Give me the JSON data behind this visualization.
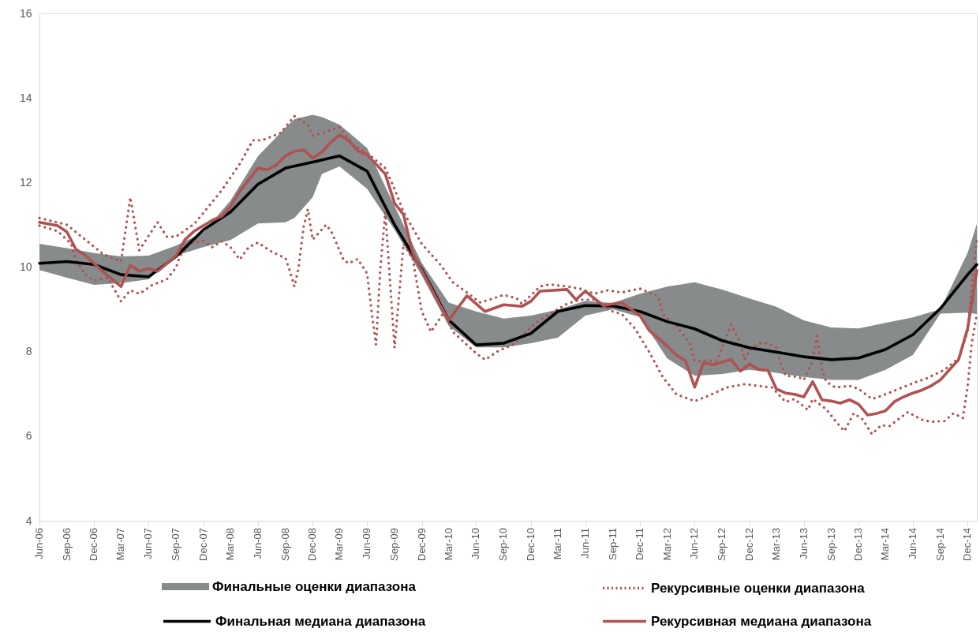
{
  "chart_data": {
    "type": "line",
    "xlim": [
      "2006-06",
      "2015-01"
    ],
    "ylim": [
      4,
      16
    ],
    "yticks": [
      4,
      6,
      8,
      10,
      12,
      14,
      16
    ],
    "grid": false,
    "legend": "bottom",
    "xticks": [
      {
        "value": "2006-06",
        "label": "Jun-06"
      },
      {
        "value": "2006-09",
        "label": "Sep-06"
      },
      {
        "value": "2006-12",
        "label": "Dec-06"
      },
      {
        "value": "2007-03",
        "label": "Mar-07"
      },
      {
        "value": "2007-06",
        "label": "Jun-07"
      },
      {
        "value": "2007-09",
        "label": "Sep-07"
      },
      {
        "value": "2007-12",
        "label": "Dec-07"
      },
      {
        "value": "2008-03",
        "label": "Mar-08"
      },
      {
        "value": "2008-06",
        "label": "Jun-08"
      },
      {
        "value": "2008-09",
        "label": "Sep-08"
      },
      {
        "value": "2008-12",
        "label": "Dec-08"
      },
      {
        "value": "2009-03",
        "label": "Mar-09"
      },
      {
        "value": "2009-06",
        "label": "Jun-09"
      },
      {
        "value": "2009-09",
        "label": "Sep-09"
      },
      {
        "value": "2009-12",
        "label": "Dec-09"
      },
      {
        "value": "2010-03",
        "label": "Mar-10"
      },
      {
        "value": "2010-06",
        "label": "Jun-10"
      },
      {
        "value": "2010-09",
        "label": "Sep-10"
      },
      {
        "value": "2010-12",
        "label": "Dec-10"
      },
      {
        "value": "2011-03",
        "label": "Mar-11"
      },
      {
        "value": "2011-06",
        "label": "Jun-11"
      },
      {
        "value": "2011-09",
        "label": "Sep-11"
      },
      {
        "value": "2011-12",
        "label": "Dec-11"
      },
      {
        "value": "2012-03",
        "label": "Mar-12"
      },
      {
        "value": "2012-06",
        "label": "Jun-12"
      },
      {
        "value": "2012-09",
        "label": "Sep-12"
      },
      {
        "value": "2012-12",
        "label": "Dec-12"
      },
      {
        "value": "2013-03",
        "label": "Mar-13"
      },
      {
        "value": "2013-06",
        "label": "Jun-13"
      },
      {
        "value": "2013-09",
        "label": "Sep-13"
      },
      {
        "value": "2013-12",
        "label": "Dec-13"
      },
      {
        "value": "2014-03",
        "label": "Mar-14"
      },
      {
        "value": "2014-06",
        "label": "Jun-14"
      },
      {
        "value": "2014-09",
        "label": "Sep-14"
      },
      {
        "value": "2014-12",
        "label": "Dec-14"
      }
    ],
    "series": [
      {
        "name": "Финальные оценки диапазона",
        "type": "area",
        "color": "#878b8b",
        "x": [
          "2006-06",
          "2006-09",
          "2006-12",
          "2007-03",
          "2007-06",
          "2007-09",
          "2007-12",
          "2008-03",
          "2008-06",
          "2008-09",
          "2008-10",
          "2008-12",
          "2009-01",
          "2009-03",
          "2009-06",
          "2009-09",
          "2009-12",
          "2010-03",
          "2010-06",
          "2010-09",
          "2010-12",
          "2011-03",
          "2011-06",
          "2011-09",
          "2011-12",
          "2012-03",
          "2012-06",
          "2012-09",
          "2012-12",
          "2013-03",
          "2013-06",
          "2013-09",
          "2013-12",
          "2014-03",
          "2014-06",
          "2014-09",
          "2014-12",
          "2015-01"
        ],
        "values": [
          null,
          null,
          null,
          null,
          null,
          null,
          null,
          null,
          null,
          null,
          null,
          null,
          null,
          null,
          null,
          null,
          null,
          null,
          null,
          null,
          null,
          null,
          null,
          null,
          null,
          null,
          null,
          null,
          null,
          null,
          null,
          null,
          null,
          null,
          null,
          null,
          null,
          null
        ],
        "lower": [
          9.93,
          9.75,
          9.58,
          9.62,
          9.71,
          10.27,
          10.47,
          10.64,
          11.03,
          11.06,
          11.16,
          11.65,
          12.2,
          12.38,
          11.85,
          10.88,
          9.8,
          8.61,
          8.1,
          8.1,
          8.2,
          8.33,
          8.85,
          9.0,
          8.82,
          7.84,
          7.43,
          7.47,
          7.57,
          7.5,
          7.4,
          7.33,
          7.33,
          7.57,
          7.92,
          8.9,
          8.92,
          8.89
        ],
        "upper": [
          10.55,
          10.45,
          10.33,
          10.25,
          10.27,
          10.51,
          10.82,
          11.57,
          12.62,
          13.3,
          13.5,
          13.6,
          13.55,
          13.37,
          12.82,
          11.44,
          10.1,
          9.16,
          8.95,
          8.78,
          8.85,
          8.99,
          9.2,
          9.15,
          9.37,
          9.54,
          9.64,
          9.47,
          9.26,
          9.06,
          8.74,
          8.57,
          8.55,
          8.68,
          8.81,
          9.0,
          10.33,
          11.02
        ]
      },
      {
        "name": "Рекурсивные оценки диапазона",
        "type": "line",
        "line_style": "dotted",
        "color": "#b05251",
        "x": [
          "2006-06",
          "2006-09",
          "2006-11",
          "2007-01",
          "2007-03",
          "2007-04",
          "2007-05",
          "2007-07",
          "2007-08",
          "2007-09",
          "2007-11",
          "2007-12-15",
          "2008-02",
          "2008-04",
          "2008-05-15",
          "2008-06-15",
          "2008-08-15",
          "2008-10",
          "2008-11-15",
          "2008-12",
          "2009-01",
          "2009-03",
          "2009-04-15",
          "2009-06",
          "2009-08",
          "2009-09",
          "2009-10",
          "2009-12",
          "2010-02",
          "2010-03-15",
          "2010-05",
          "2010-06-15",
          "2010-09",
          "2010-10-15",
          "2010-11",
          "2011-01",
          "2011-02",
          "2011-04",
          "2011-05-15",
          "2011-07",
          "2011-08-15",
          "2011-10",
          "2011-12",
          "2012-02",
          "2012-02-15",
          "2012-04",
          "2012-05-15",
          "2012-06",
          "2012-08-15",
          "2012-09",
          "2012-10",
          "2012-11",
          "2012-11-15",
          "2012-12",
          "2013-01",
          "2013-02",
          "2013-03",
          "2013-03-15",
          "2013-04",
          "2013-05-15",
          "2013-06",
          "2013-07",
          "2013-07-15",
          "2013-08",
          "2013-08-15",
          "2013-09-15",
          "2013-11",
          "2013-12",
          "2014-01-15",
          "2014-02-15",
          "2014-04-15",
          "2014-06-15",
          "2014-07-15",
          "2014-09-15",
          "2014-11",
          "2014-12",
          "2014-12-15",
          "2015-01"
        ],
        "values": [
          11.16,
          11.0,
          10.65,
          10.3,
          10.13,
          11.65,
          10.4,
          11.06,
          10.72,
          10.72,
          11.02,
          11.4,
          11.82,
          12.44,
          13.0,
          13.0,
          13.17,
          13.57,
          13.37,
          13.11,
          13.17,
          13.31,
          12.89,
          12.7,
          12.34,
          11.85,
          11.3,
          10.55,
          10.06,
          9.64,
          9.4,
          9.16,
          9.34,
          9.26,
          9.13,
          9.54,
          9.59,
          9.54,
          9.49,
          9.37,
          9.45,
          9.4,
          9.49,
          9.3,
          8.89,
          8.6,
          8.2,
          7.78,
          7.79,
          8.12,
          8.64,
          8.2,
          7.81,
          8.02,
          8.2,
          8.2,
          8.09,
          7.74,
          7.43,
          7.4,
          7.33,
          7.78,
          8.37,
          7.57,
          7.29,
          7.15,
          7.19,
          7.12,
          6.88,
          6.95,
          7.12,
          7.29,
          7.36,
          7.57,
          7.84,
          8.47,
          9.58,
          10.64
        ]
      },
      {
        "type": "line",
        "line_style": "dotted",
        "color": "#b05251",
        "x": [
          "2006-06",
          "2006-08",
          "2006-09-15",
          "2006-10",
          "2006-11",
          "2006-12",
          "2007-01-15",
          "2007-02-15",
          "2007-03",
          "2007-04",
          "2007-05",
          "2007-06-15",
          "2007-08",
          "2007-09",
          "2007-09-15",
          "2007-10-15",
          "2007-12",
          "2008-01",
          "2008-02",
          "2008-03",
          "2008-04",
          "2008-05",
          "2008-06",
          "2008-07-15",
          "2008-09",
          "2008-09-15",
          "2008-10",
          "2008-10-15",
          "2008-11",
          "2008-11-15",
          "2008-12",
          "2009-01-15",
          "2009-02",
          "2009-03-15",
          "2009-04",
          "2009-05",
          "2009-06",
          "2009-06-15",
          "2009-07",
          "2009-07-15",
          "2009-08",
          "2009-09",
          "2009-10",
          "2009-11",
          "2009-12",
          "2010-01",
          "2010-02-15",
          "2010-03-15",
          "2010-05",
          "2010-06",
          "2010-07",
          "2010-08-15",
          "2010-10",
          "2010-12-15",
          "2011-02-15",
          "2011-04",
          "2011-05-15",
          "2011-07",
          "2011-09",
          "2011-10",
          "2011-11-15",
          "2012-01",
          "2012-02-15",
          "2012-04",
          "2012-06",
          "2012-07-15",
          "2012-09-15",
          "2012-11-15",
          "2013-01",
          "2013-02-15",
          "2013-04",
          "2013-05",
          "2013-06-15",
          "2013-07",
          "2013-08-15",
          "2013-09-15",
          "2013-10-15",
          "2013-11-15",
          "2013-12-15",
          "2014-01-15",
          "2014-02-15",
          "2014-03-15",
          "2014-05-15",
          "2014-07",
          "2014-08",
          "2014-09-15",
          "2014-10-15",
          "2014-11-15",
          "2014-12",
          "2014-12-15",
          "2015-01"
        ],
        "values": [
          10.98,
          10.85,
          10.55,
          10.16,
          9.82,
          9.68,
          9.75,
          9.37,
          9.19,
          9.45,
          9.37,
          9.58,
          9.71,
          9.99,
          10.27,
          10.55,
          10.62,
          10.47,
          10.61,
          10.47,
          10.18,
          10.47,
          10.58,
          10.37,
          10.21,
          9.92,
          9.54,
          9.99,
          10.96,
          11.37,
          10.65,
          11.0,
          10.85,
          10.16,
          10.09,
          10.19,
          9.85,
          9.02,
          8.16,
          9.92,
          11.3,
          8.09,
          10.55,
          10.19,
          8.95,
          8.47,
          8.95,
          8.47,
          8.16,
          7.96,
          7.81,
          8.02,
          8.16,
          8.67,
          8.95,
          9.13,
          9.23,
          9.23,
          8.95,
          8.89,
          8.54,
          7.99,
          7.4,
          6.99,
          6.83,
          6.95,
          7.15,
          7.23,
          7.19,
          7.15,
          6.81,
          6.88,
          6.62,
          6.88,
          6.64,
          6.36,
          6.12,
          6.54,
          6.4,
          6.05,
          6.26,
          6.24,
          6.57,
          6.39,
          6.34,
          6.36,
          6.54,
          6.43,
          7.16,
          8.2,
          8.89
        ]
      },
      {
        "name": "Финальная медиана диапазона",
        "type": "line",
        "color": "#000000",
        "x": [
          "2006-06",
          "2006-09",
          "2006-12",
          "2007-03",
          "2007-06",
          "2007-09",
          "2007-12",
          "2008-03",
          "2008-06",
          "2008-09",
          "2008-12",
          "2009-03",
          "2009-06",
          "2009-09",
          "2009-12",
          "2010-03",
          "2010-06",
          "2010-09",
          "2010-12",
          "2011-03",
          "2011-06",
          "2011-09",
          "2011-12",
          "2012-03",
          "2012-06",
          "2012-09",
          "2012-12",
          "2013-03",
          "2013-06",
          "2013-09",
          "2013-12",
          "2014-03",
          "2014-06",
          "2014-09",
          "2014-12",
          "2015-01"
        ],
        "values": [
          10.09,
          10.13,
          10.06,
          9.82,
          9.77,
          10.25,
          10.88,
          11.3,
          11.96,
          12.34,
          12.48,
          12.63,
          12.27,
          11.0,
          9.95,
          8.75,
          8.16,
          8.2,
          8.43,
          8.95,
          9.09,
          9.08,
          8.95,
          8.71,
          8.54,
          8.26,
          8.09,
          7.99,
          7.88,
          7.81,
          7.85,
          8.05,
          8.4,
          9.02,
          9.82,
          10.06
        ]
      },
      {
        "name": "Рекурсивная медиана диапазона",
        "type": "line",
        "color": "#b05251",
        "x": [
          "2006-06",
          "2006-08",
          "2006-09",
          "2006-10",
          "2006-11",
          "2007-01",
          "2007-03",
          "2007-04",
          "2007-05",
          "2007-06",
          "2007-07",
          "2007-09",
          "2007-10",
          "2007-11",
          "2007-12",
          "2008-01",
          "2008-02",
          "2008-03",
          "2008-04",
          "2008-06",
          "2008-07",
          "2008-08",
          "2008-09",
          "2008-10",
          "2008-11",
          "2008-12",
          "2009-01",
          "2009-02",
          "2009-03",
          "2009-04",
          "2009-05",
          "2009-06",
          "2009-08",
          "2009-09",
          "2009-10",
          "2009-11",
          "2009-12",
          "2010-02",
          "2010-03",
          "2010-05",
          "2010-07",
          "2010-09",
          "2010-11",
          "2010-12",
          "2011-01",
          "2011-04",
          "2011-05",
          "2011-06",
          "2011-08",
          "2011-10",
          "2011-12",
          "2012-01",
          "2012-02-15",
          "2012-04",
          "2012-05",
          "2012-06",
          "2012-07",
          "2012-08",
          "2012-10",
          "2012-11",
          "2012-12",
          "2013-01",
          "2013-02",
          "2013-03",
          "2013-04",
          "2013-05",
          "2013-06",
          "2013-07",
          "2013-08",
          "2013-09",
          "2013-10",
          "2013-11",
          "2013-12",
          "2014-01",
          "2014-02",
          "2014-03",
          "2014-04",
          "2014-05",
          "2014-06",
          "2014-07",
          "2014-08",
          "2014-09",
          "2014-10",
          "2014-11",
          "2014-12",
          "2015-01"
        ],
        "values": [
          11.06,
          10.98,
          10.83,
          10.42,
          10.28,
          9.88,
          9.54,
          10.04,
          9.9,
          9.97,
          9.9,
          10.27,
          10.65,
          10.85,
          10.98,
          11.11,
          11.2,
          11.43,
          11.79,
          12.34,
          12.3,
          12.41,
          12.63,
          12.74,
          12.77,
          12.58,
          12.72,
          12.96,
          13.13,
          12.99,
          12.75,
          12.66,
          12.2,
          11.51,
          11.24,
          10.33,
          9.92,
          9.09,
          8.74,
          9.32,
          8.95,
          9.11,
          9.07,
          9.19,
          9.43,
          9.47,
          9.23,
          9.43,
          9.09,
          9.16,
          8.85,
          8.5,
          8.23,
          7.92,
          7.79,
          7.16,
          7.74,
          7.69,
          7.81,
          7.54,
          7.71,
          7.58,
          7.56,
          7.12,
          7.02,
          6.99,
          6.93,
          7.29,
          6.86,
          6.83,
          6.78,
          6.86,
          6.76,
          6.5,
          6.54,
          6.6,
          6.82,
          6.93,
          7.02,
          7.09,
          7.19,
          7.33,
          7.57,
          7.81,
          8.54,
          9.92
        ]
      }
    ]
  }
}
